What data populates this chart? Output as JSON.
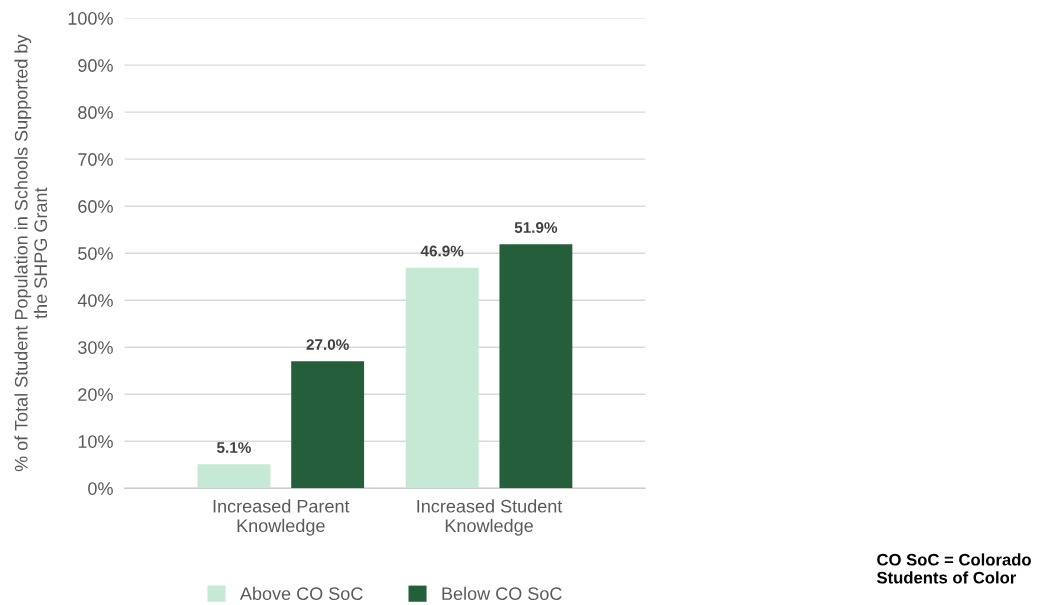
{
  "chart_data": {
    "type": "bar",
    "ylabel": "% of Total Student Population in Schools Supported by\nthe SHPG Grant",
    "categories": [
      "Increased Parent\nKnowledge",
      "Increased Student\nKnowledge"
    ],
    "series": [
      {
        "name": "Above CO SoC",
        "color": "#c6e9d5",
        "values": [
          5.1,
          46.9
        ],
        "value_labels": [
          "5.1%",
          "46.9%"
        ]
      },
      {
        "name": "Below CO SoC",
        "color": "#245e3b",
        "values": [
          27.0,
          51.9
        ],
        "value_labels": [
          "27.0%",
          "51.9%"
        ]
      }
    ],
    "ylim": [
      0,
      100
    ],
    "yticks": [
      {
        "value": 0,
        "label": "0%"
      },
      {
        "value": 10,
        "label": "10%"
      },
      {
        "value": 20,
        "label": "20%"
      },
      {
        "value": 30,
        "label": "30%"
      },
      {
        "value": 40,
        "label": "40%"
      },
      {
        "value": 50,
        "label": "50%"
      },
      {
        "value": 60,
        "label": "60%"
      },
      {
        "value": 70,
        "label": "70%"
      },
      {
        "value": 80,
        "label": "80%"
      },
      {
        "value": 90,
        "label": "90%"
      },
      {
        "value": 100,
        "label": "100%"
      }
    ],
    "grid": "y",
    "legend": "bottom",
    "annotations": [
      "CO SoC = Colorado\nStudents of Color"
    ]
  }
}
